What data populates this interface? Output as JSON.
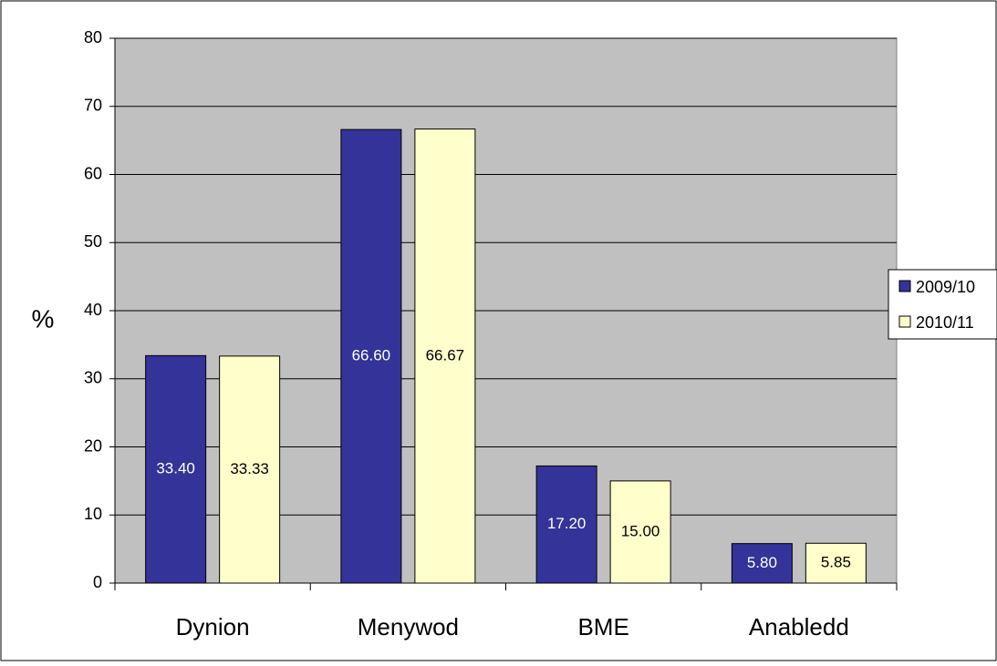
{
  "chart_data": {
    "type": "bar",
    "title": "",
    "xlabel": "",
    "ylabel": "%",
    "ylim": [
      0,
      80
    ],
    "yticks": [
      0,
      10,
      20,
      30,
      40,
      50,
      60,
      70,
      80
    ],
    "grid": true,
    "legend_position": "right",
    "categories": [
      "Dynion",
      "Menywod",
      "BME",
      "Anabledd"
    ],
    "series": [
      {
        "name": "2009/10",
        "values": [
          33.4,
          66.6,
          17.2,
          5.8
        ],
        "labels": [
          "33.40",
          "66.60",
          "17.20",
          "5.80"
        ]
      },
      {
        "name": "2010/11",
        "values": [
          33.33,
          66.67,
          15.0,
          5.85
        ],
        "labels": [
          "33.33",
          "66.67",
          "15.00",
          "5.85"
        ]
      }
    ]
  },
  "colors": {
    "plot_background": "#c0c0c0",
    "series": [
      "#333399",
      "#ffffcc"
    ],
    "data_label_text": [
      "#ffffff",
      "#000000"
    ],
    "gridline": "#000000"
  }
}
